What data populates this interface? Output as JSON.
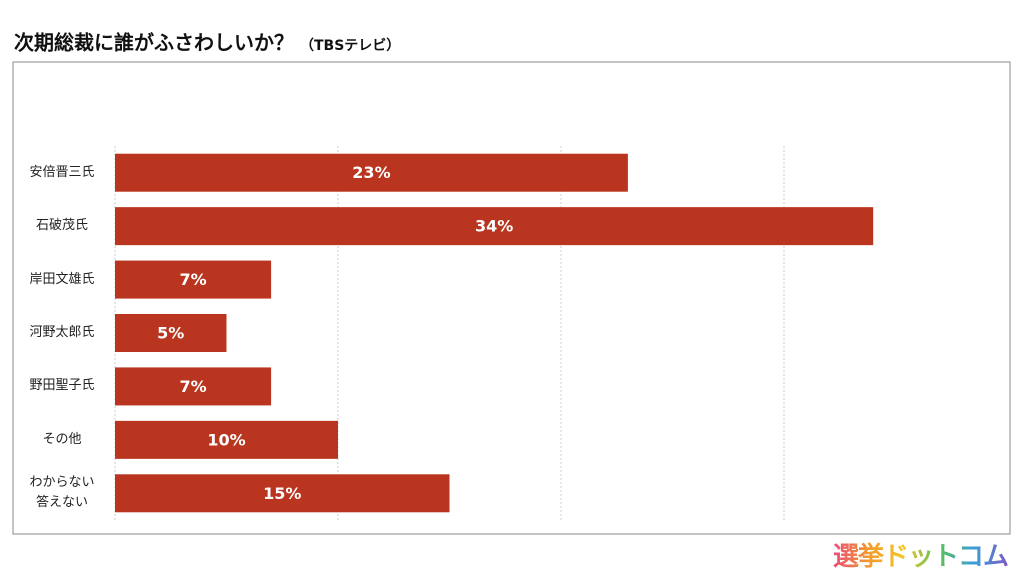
{
  "chart_data": {
    "type": "bar",
    "orientation": "horizontal",
    "title": "次期総裁に誰がふさわしいか？",
    "subtitle": "（TBSテレビ）",
    "categories": [
      "安倍晋三氏",
      "石破茂氏",
      "岸田文雄氏",
      "河野太郎氏",
      "野田聖子氏",
      "その他",
      "わからない\n答えない"
    ],
    "values": [
      23,
      34,
      7,
      5,
      7,
      10,
      15
    ],
    "value_labels": [
      "23%",
      "34%",
      "7%",
      "5%",
      "7%",
      "10%",
      "15%"
    ],
    "color": "#b9351f",
    "xlim": [
      0,
      40
    ],
    "xticks": [
      0,
      10,
      20,
      30
    ],
    "grid": true
  },
  "logo": "選挙ドットコム"
}
